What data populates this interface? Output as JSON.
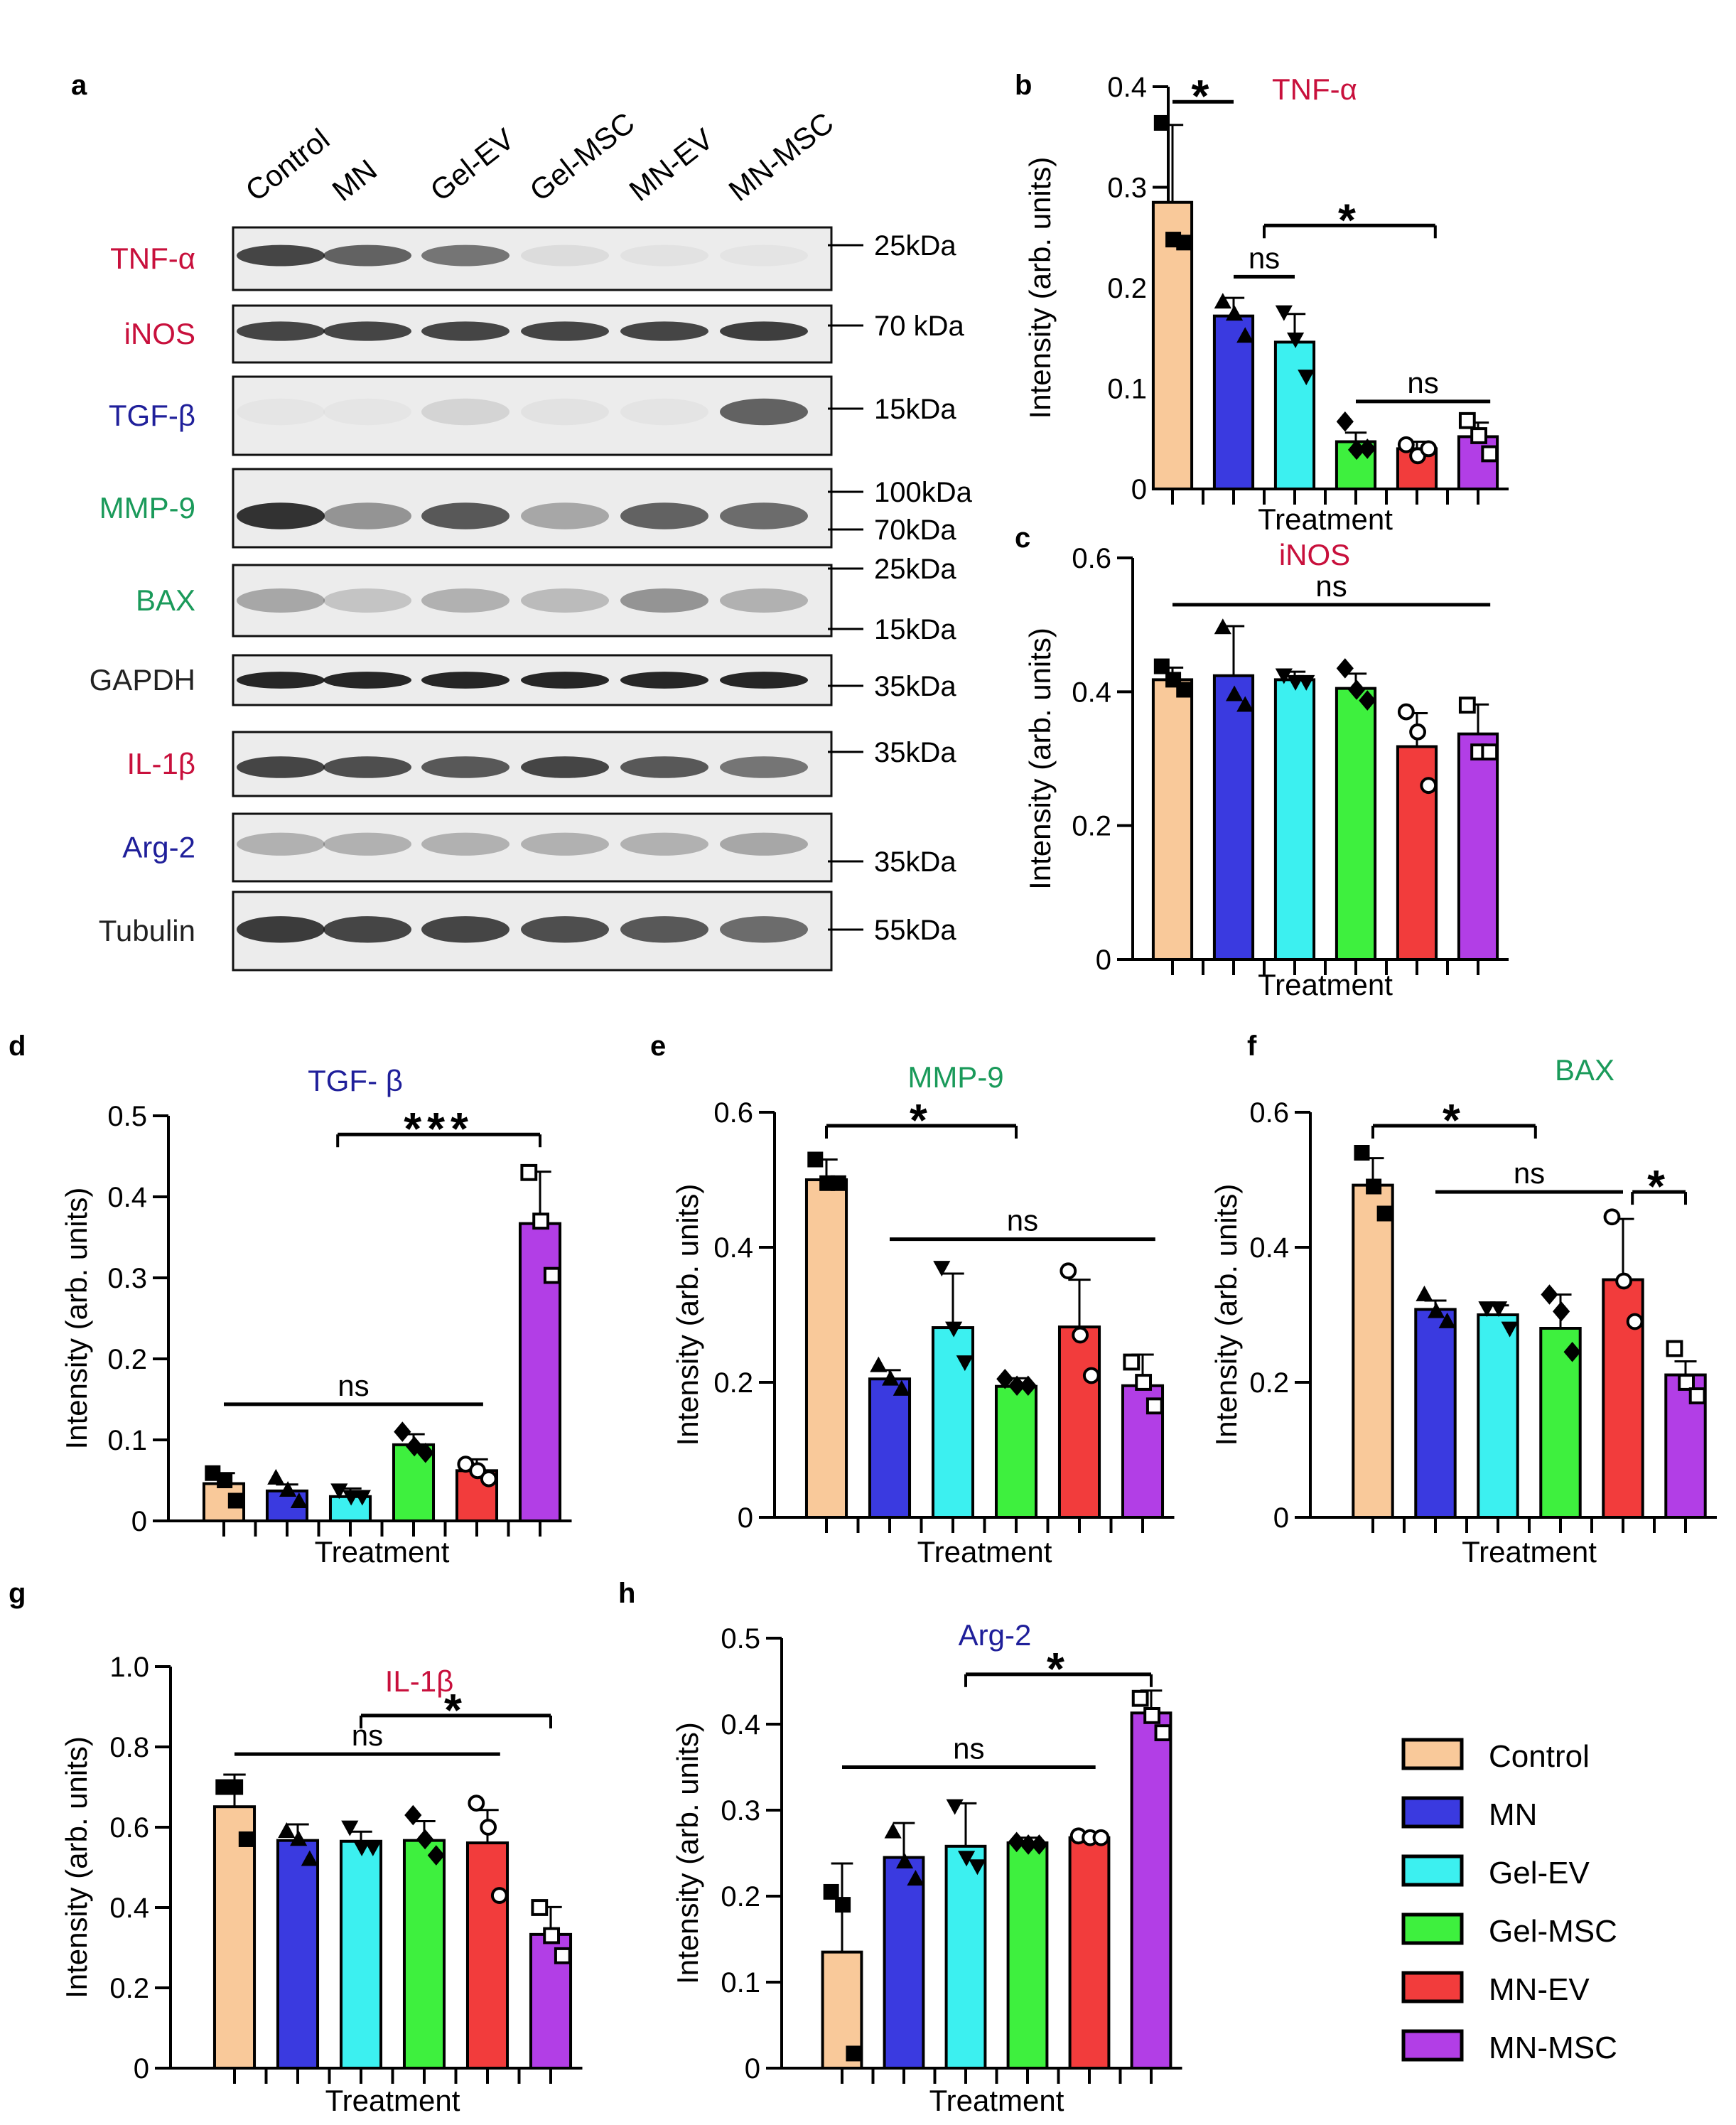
{
  "panel_letters": [
    "a",
    "b",
    "c",
    "d",
    "e",
    "f",
    "g",
    "h"
  ],
  "blot": {
    "lanes": [
      "Control",
      "MN",
      "Gel-EV",
      "Gel-MSC",
      "MN-EV",
      "MN-MSC"
    ],
    "rows": [
      {
        "label": "TNF-α",
        "color": "#c8103c",
        "markers": [
          "25kDa"
        ]
      },
      {
        "label": "iNOS",
        "color": "#c8103c",
        "markers": [
          "70 kDa"
        ]
      },
      {
        "label": "TGF-β",
        "color": "#1f1f9a",
        "markers": [
          "15kDa"
        ]
      },
      {
        "label": "MMP-9",
        "color": "#1a9a5a",
        "markers": [
          "100kDa",
          "70kDa"
        ]
      },
      {
        "label": "BAX",
        "color": "#1a9a5a",
        "markers": [
          "25kDa",
          "15kDa"
        ]
      },
      {
        "label": "GAPDH",
        "color": "#222222",
        "markers": [
          "35kDa"
        ]
      },
      {
        "label": "IL-1β",
        "color": "#c8103c",
        "markers": [
          "35kDa"
        ]
      },
      {
        "label": "Arg-2",
        "color": "#1f1f9a",
        "markers": [
          "35kDa"
        ]
      },
      {
        "label": "Tubulin",
        "color": "#222222",
        "markers": [
          "55kDa"
        ]
      }
    ]
  },
  "legend": {
    "items": [
      {
        "label": "Control",
        "color": "#f9c99a"
      },
      {
        "label": "MN",
        "color": "#3a3ae0"
      },
      {
        "label": "Gel-EV",
        "color": "#3cf0f0"
      },
      {
        "label": "Gel-MSC",
        "color": "#3ef03e"
      },
      {
        "label": "MN-EV",
        "color": "#f23c3c"
      },
      {
        "label": "MN-MSC",
        "color": "#b23ee6"
      }
    ]
  },
  "chart_data": [
    {
      "panel": "b",
      "type": "bar",
      "title": "TNF-α",
      "title_color": "#c8103c",
      "categories": [
        "Control",
        "MN",
        "Gel-EV",
        "Gel-MSC",
        "MN-EV",
        "MN-MSC"
      ],
      "values": [
        0.285,
        0.172,
        0.146,
        0.047,
        0.04,
        0.052
      ],
      "errors": [
        0.077,
        0.018,
        0.028,
        0.009,
        0.007,
        0.014
      ],
      "points": [
        [
          0.364,
          0.248,
          0.245
        ],
        [
          0.186,
          0.174,
          0.152
        ],
        [
          0.176,
          0.149,
          0.112
        ],
        [
          0.067,
          0.039,
          0.04
        ],
        [
          0.044,
          0.033,
          0.04
        ],
        [
          0.068,
          0.053,
          0.035
        ]
      ],
      "xlabel": "Treatment",
      "ylabel": "Intensity (arb. units)",
      "ylim": [
        0,
        0.4
      ],
      "yticks": [
        0,
        0.1,
        0.2,
        0.3,
        0.4
      ],
      "ytick_labels": [
        "0",
        "0.1",
        "0.2",
        "0.3",
        "0.4"
      ],
      "significance": [
        {
          "from": 0,
          "to": 1,
          "label": "*",
          "y": 0.385
        },
        {
          "from": 1,
          "to": 2,
          "label": "ns",
          "y": 0.211
        },
        {
          "from": 1.5,
          "to": 4.3,
          "label": "*",
          "y": 0.262
        },
        {
          "from": 3,
          "to": 5.2,
          "label": "ns",
          "y": 0.087
        }
      ]
    },
    {
      "panel": "c",
      "type": "bar",
      "title": "iNOS",
      "title_color": "#c8103c",
      "categories": [
        "Control",
        "MN",
        "Gel-EV",
        "Gel-MSC",
        "MN-EV",
        "MN-MSC"
      ],
      "values": [
        0.418,
        0.424,
        0.418,
        0.405,
        0.318,
        0.337
      ],
      "errors": [
        0.018,
        0.074,
        0.012,
        0.022,
        0.05,
        0.044
      ],
      "points": [
        [
          0.438,
          0.418,
          0.403
        ],
        [
          0.496,
          0.396,
          0.38
        ],
        [
          0.425,
          0.415,
          0.415
        ],
        [
          0.435,
          0.403,
          0.387
        ],
        [
          0.37,
          0.34,
          0.26
        ],
        [
          0.38,
          0.31,
          0.31
        ]
      ],
      "xlabel": "Treatment",
      "ylabel": "Intensity (arb. units)",
      "ylim": [
        0,
        0.6
      ],
      "yticks": [
        0,
        0.2,
        0.4,
        0.6
      ],
      "ytick_labels": [
        "0",
        "0.2",
        "0.4",
        "0.6"
      ],
      "significance": [
        {
          "from": 0,
          "to": 5.2,
          "label": "ns",
          "y": 0.53
        }
      ]
    },
    {
      "panel": "d",
      "type": "bar",
      "title": "TGF- β",
      "title_color": "#1f1f9a",
      "categories": [
        "Control",
        "MN",
        "Gel-EV",
        "Gel-MSC",
        "MN-EV",
        "MN-MSC"
      ],
      "values": [
        0.046,
        0.037,
        0.03,
        0.094,
        0.062,
        0.367
      ],
      "errors": [
        0.013,
        0.008,
        0.01,
        0.013,
        0.014,
        0.064
      ],
      "points": [
        [
          0.059,
          0.05,
          0.025
        ],
        [
          0.053,
          0.038,
          0.024
        ],
        [
          0.038,
          0.03,
          0.03
        ],
        [
          0.11,
          0.092,
          0.084
        ],
        [
          0.07,
          0.062,
          0.052
        ],
        [
          0.43,
          0.37,
          0.303
        ]
      ],
      "xlabel": "Treatment",
      "ylabel": "Intensity (arb. units)",
      "ylim": [
        0,
        0.5
      ],
      "yticks": [
        0,
        0.1,
        0.2,
        0.3,
        0.4,
        0.5
      ],
      "ytick_labels": [
        "0",
        "0.1",
        "0.2",
        "0.3",
        "0.4",
        "0.5"
      ],
      "significance": [
        {
          "from": 0,
          "to": 4.1,
          "label": "ns",
          "y": 0.144
        },
        {
          "from": 1.8,
          "to": 5,
          "label": "***",
          "y": 0.477
        }
      ]
    },
    {
      "panel": "e",
      "type": "bar",
      "title": "MMP-9",
      "title_color": "#1a9a5a",
      "categories": [
        "Control",
        "MN",
        "Gel-EV",
        "Gel-MSC",
        "MN-EV",
        "MN-MSC"
      ],
      "values": [
        0.5,
        0.205,
        0.281,
        0.194,
        0.282,
        0.195
      ],
      "errors": [
        0.03,
        0.013,
        0.08,
        0.012,
        0.07,
        0.046
      ],
      "points": [
        [
          0.53,
          0.495,
          0.495
        ],
        [
          0.225,
          0.205,
          0.19
        ],
        [
          0.37,
          0.28,
          0.23
        ],
        [
          0.205,
          0.195,
          0.195
        ],
        [
          0.365,
          0.27,
          0.21
        ],
        [
          0.23,
          0.2,
          0.165
        ]
      ],
      "xlabel": "Treatment",
      "ylabel": "Intensity (arb. units)",
      "ylim": [
        0,
        0.6
      ],
      "yticks": [
        0,
        0.2,
        0.4,
        0.6
      ],
      "ytick_labels": [
        "0",
        "0.2",
        "0.4",
        "0.6"
      ],
      "significance": [
        {
          "from": 0,
          "to": 3,
          "label": "*",
          "y": 0.58
        },
        {
          "from": 1,
          "to": 5.2,
          "label": "ns",
          "y": 0.412
        }
      ]
    },
    {
      "panel": "f",
      "type": "bar",
      "title": "BAX",
      "title_color": "#1a9a5a",
      "categories": [
        "Control",
        "MN",
        "Gel-EV",
        "Gel-MSC",
        "MN-EV",
        "MN-MSC"
      ],
      "values": [
        0.492,
        0.308,
        0.3,
        0.28,
        0.352,
        0.211
      ],
      "errors": [
        0.04,
        0.013,
        0.014,
        0.05,
        0.09,
        0.02
      ],
      "points": [
        [
          0.54,
          0.49,
          0.45
        ],
        [
          0.33,
          0.305,
          0.29
        ],
        [
          0.31,
          0.31,
          0.28
        ],
        [
          0.33,
          0.305,
          0.245
        ],
        [
          0.445,
          0.35,
          0.29
        ],
        [
          0.25,
          0.2,
          0.18
        ]
      ],
      "xlabel": "Treatment",
      "ylabel": "Intensity (arb. units)",
      "ylim": [
        0,
        0.6
      ],
      "yticks": [
        0,
        0.2,
        0.4,
        0.6
      ],
      "ytick_labels": [
        "0",
        "0.2",
        "0.4",
        "0.6"
      ],
      "significance": [
        {
          "from": 0,
          "to": 2.6,
          "label": "*",
          "y": 0.58
        },
        {
          "from": 1,
          "to": 4,
          "label": "ns",
          "y": 0.482
        },
        {
          "from": 4.15,
          "to": 5,
          "label": "*",
          "y": 0.482
        }
      ]
    },
    {
      "panel": "g",
      "type": "bar",
      "title": "IL-1β",
      "title_color": "#c8103c",
      "categories": [
        "Control",
        "MN",
        "Gel-EV",
        "Gel-MSC",
        "MN-EV",
        "MN-MSC"
      ],
      "values": [
        0.651,
        0.567,
        0.565,
        0.567,
        0.561,
        0.333
      ],
      "errors": [
        0.08,
        0.04,
        0.024,
        0.048,
        0.082,
        0.068
      ],
      "points": [
        [
          0.7,
          0.7,
          0.57
        ],
        [
          0.59,
          0.57,
          0.52
        ],
        [
          0.6,
          0.55,
          0.55
        ],
        [
          0.63,
          0.57,
          0.53
        ],
        [
          0.66,
          0.6,
          0.43
        ],
        [
          0.4,
          0.33,
          0.28
        ]
      ],
      "xlabel": "Treatment",
      "ylabel": "Intensity (arb. units)",
      "ylim": [
        0,
        1.0
      ],
      "yticks": [
        0,
        0.2,
        0.4,
        0.6,
        0.8,
        1.0
      ],
      "ytick_labels": [
        "0",
        "0.2",
        "0.4",
        "0.6",
        "0.8",
        "1.0"
      ],
      "significance": [
        {
          "from": 0,
          "to": 4.2,
          "label": "ns",
          "y": 0.782
        },
        {
          "from": 2,
          "to": 5,
          "label": "*",
          "y": 0.878
        }
      ]
    },
    {
      "panel": "h",
      "type": "bar",
      "title": "Arg-2",
      "title_color": "#1f1f9a",
      "categories": [
        "Control",
        "MN",
        "Gel-EV",
        "Gel-MSC",
        "MN-EV",
        "MN-MSC"
      ],
      "values": [
        0.135,
        0.245,
        0.258,
        0.262,
        0.268,
        0.413
      ],
      "errors": [
        0.103,
        0.04,
        0.05,
        0.006,
        0.006,
        0.026
      ],
      "points": [
        [
          0.205,
          0.19,
          0.017
        ],
        [
          0.275,
          0.24,
          0.22
        ],
        [
          0.305,
          0.245,
          0.235
        ],
        [
          0.263,
          0.26,
          0.26
        ],
        [
          0.27,
          0.268,
          0.268
        ],
        [
          0.43,
          0.41,
          0.39
        ]
      ],
      "xlabel": "Treatment",
      "ylabel": "Intensity (arb. units)",
      "ylim": [
        0,
        0.5
      ],
      "yticks": [
        0,
        0.1,
        0.2,
        0.3,
        0.4,
        0.5
      ],
      "ytick_labels": [
        "0",
        "0.1",
        "0.2",
        "0.3",
        "0.4",
        "0.5"
      ],
      "significance": [
        {
          "from": 0,
          "to": 4.1,
          "label": "ns",
          "y": 0.35
        },
        {
          "from": 2,
          "to": 5,
          "label": "*",
          "y": 0.458
        }
      ]
    }
  ]
}
